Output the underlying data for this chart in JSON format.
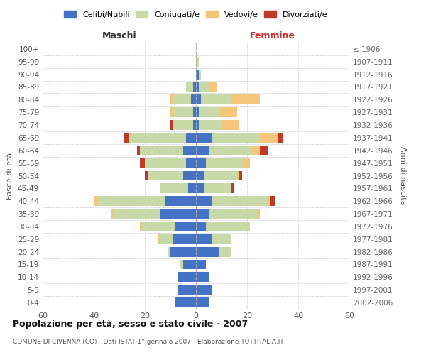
{
  "age_groups": [
    "0-4",
    "5-9",
    "10-14",
    "15-19",
    "20-24",
    "25-29",
    "30-34",
    "35-39",
    "40-44",
    "45-49",
    "50-54",
    "55-59",
    "60-64",
    "65-69",
    "70-74",
    "75-79",
    "80-84",
    "85-89",
    "90-94",
    "95-99",
    "100+"
  ],
  "birth_years": [
    "2002-2006",
    "1997-2001",
    "1992-1996",
    "1987-1991",
    "1982-1986",
    "1977-1981",
    "1972-1976",
    "1967-1971",
    "1962-1966",
    "1957-1961",
    "1952-1956",
    "1947-1951",
    "1942-1946",
    "1937-1941",
    "1932-1936",
    "1927-1931",
    "1922-1926",
    "1917-1921",
    "1912-1916",
    "1907-1911",
    "≤ 1906"
  ],
  "males": {
    "celibe": [
      8,
      7,
      7,
      5,
      10,
      9,
      8,
      14,
      12,
      3,
      5,
      4,
      5,
      4,
      1,
      1,
      2,
      1,
      0,
      0,
      0
    ],
    "coniugato": [
      0,
      0,
      0,
      1,
      1,
      5,
      13,
      18,
      27,
      11,
      14,
      16,
      17,
      22,
      8,
      8,
      7,
      3,
      0,
      0,
      0
    ],
    "vedovo": [
      0,
      0,
      0,
      0,
      0,
      1,
      1,
      1,
      1,
      0,
      0,
      0,
      0,
      0,
      0,
      1,
      1,
      0,
      0,
      0,
      0
    ],
    "divorziato": [
      0,
      0,
      0,
      0,
      0,
      0,
      0,
      0,
      0,
      0,
      1,
      2,
      1,
      2,
      1,
      0,
      0,
      0,
      0,
      0,
      0
    ]
  },
  "females": {
    "nubile": [
      5,
      6,
      5,
      4,
      9,
      6,
      4,
      5,
      6,
      3,
      3,
      4,
      5,
      6,
      1,
      1,
      2,
      1,
      1,
      0,
      0
    ],
    "coniugata": [
      0,
      0,
      0,
      0,
      5,
      8,
      17,
      19,
      22,
      11,
      13,
      15,
      17,
      19,
      9,
      8,
      12,
      4,
      1,
      1,
      0
    ],
    "vedova": [
      0,
      0,
      0,
      0,
      0,
      0,
      0,
      1,
      1,
      0,
      1,
      2,
      3,
      7,
      7,
      7,
      11,
      3,
      0,
      0,
      0
    ],
    "divorziata": [
      0,
      0,
      0,
      0,
      0,
      0,
      0,
      0,
      2,
      1,
      1,
      0,
      3,
      2,
      0,
      0,
      0,
      0,
      0,
      0,
      0
    ]
  },
  "colors": {
    "celibe": "#4472c4",
    "coniugato": "#c8d9a8",
    "vedovo": "#f5c57a",
    "divorziato": "#c0392b"
  },
  "title": "Popolazione per età, sesso e stato civile - 2007",
  "subtitle": "COMUNE DI CIVENNA (CO) - Dati ISTAT 1° gennaio 2007 - Elaborazione TUTTITALIA.IT",
  "xlabel_left": "Maschi",
  "xlabel_right": "Femmine",
  "ylabel_left": "Fasce di età",
  "ylabel_right": "Anni di nascita",
  "xlim": 60,
  "legend_labels": [
    "Celibi/Nubili",
    "Coniugati/e",
    "Vedovi/e",
    "Divorziati/e"
  ],
  "background_color": "#ffffff",
  "grid_color": "#cccccc"
}
